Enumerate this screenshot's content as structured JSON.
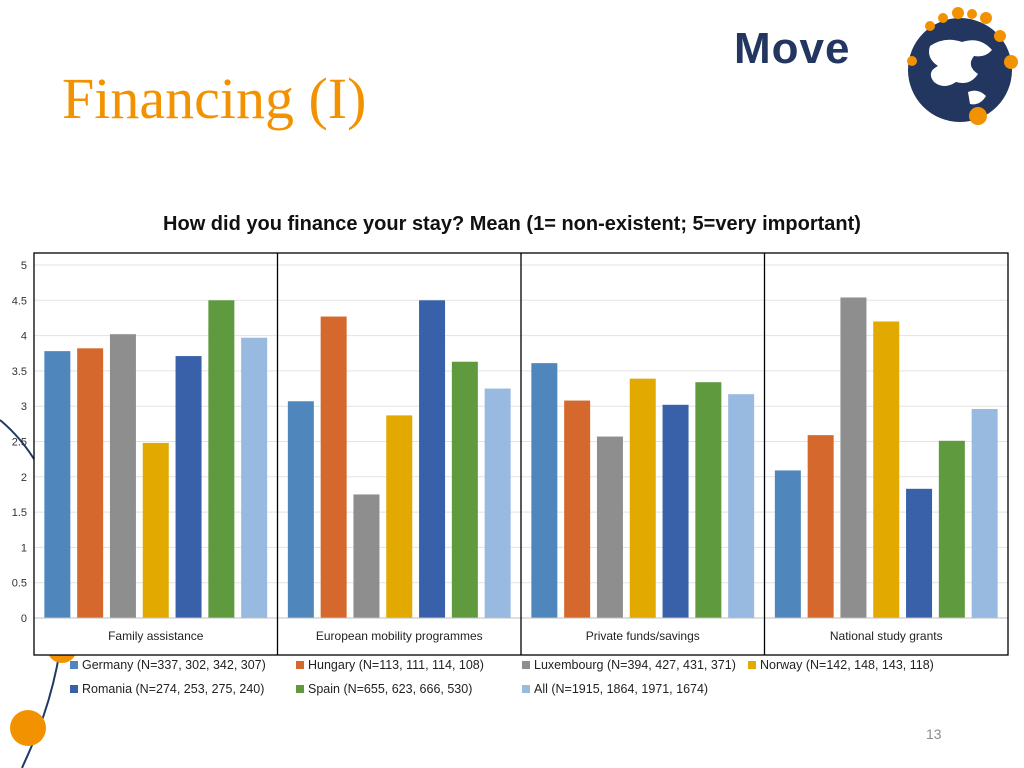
{
  "slide": {
    "title": "Financing (I)",
    "logo_text": "Move",
    "page_number": "13"
  },
  "colors": {
    "title": "#F39200",
    "accent_orange": "#F39200",
    "logo_navy": "#22365F",
    "curve": "#1F3864"
  },
  "chart_data": {
    "type": "bar",
    "title": "How did you  finance your stay? Mean (1= non-existent; 5=very important)",
    "ylim": [
      0,
      5
    ],
    "yticks": [
      "0",
      "0.5",
      "1",
      "1.5",
      "2",
      "2.5",
      "3",
      "3.5",
      "4",
      "4.5",
      "5"
    ],
    "grid": true,
    "legend_position": "bottom",
    "categories": [
      "Family assistance",
      "European mobility programmes",
      "Private funds/savings",
      "National study grants"
    ],
    "series": [
      {
        "name": "Germany (N=337, 302, 342, 307)",
        "color": "#4F87BD",
        "values": [
          3.78,
          3.07,
          3.61,
          2.09
        ]
      },
      {
        "name": "Hungary (N=113, 111, 114, 108)",
        "color": "#D5692D",
        "values": [
          3.82,
          4.27,
          3.08,
          2.59
        ]
      },
      {
        "name": "Luxembourg (N=394, 427, 431, 371)",
        "color": "#8E8E8E",
        "values": [
          4.02,
          1.75,
          2.57,
          4.54
        ]
      },
      {
        "name": "Norway (N=142, 148, 143, 118)",
        "color": "#E2A900",
        "values": [
          2.48,
          2.87,
          3.39,
          4.2
        ]
      },
      {
        "name": "Romania (N=274, 253, 275, 240)",
        "color": "#3861AA",
        "values": [
          3.71,
          4.5,
          3.02,
          1.83
        ]
      },
      {
        "name": "Spain (N=655, 623, 666, 530)",
        "color": "#5F9A3F",
        "values": [
          4.5,
          3.63,
          3.34,
          2.51
        ]
      },
      {
        "name": "All (N=1915, 1864, 1971, 1674)",
        "color": "#98B9E0",
        "values": [
          3.97,
          3.25,
          3.17,
          2.96
        ]
      }
    ]
  }
}
